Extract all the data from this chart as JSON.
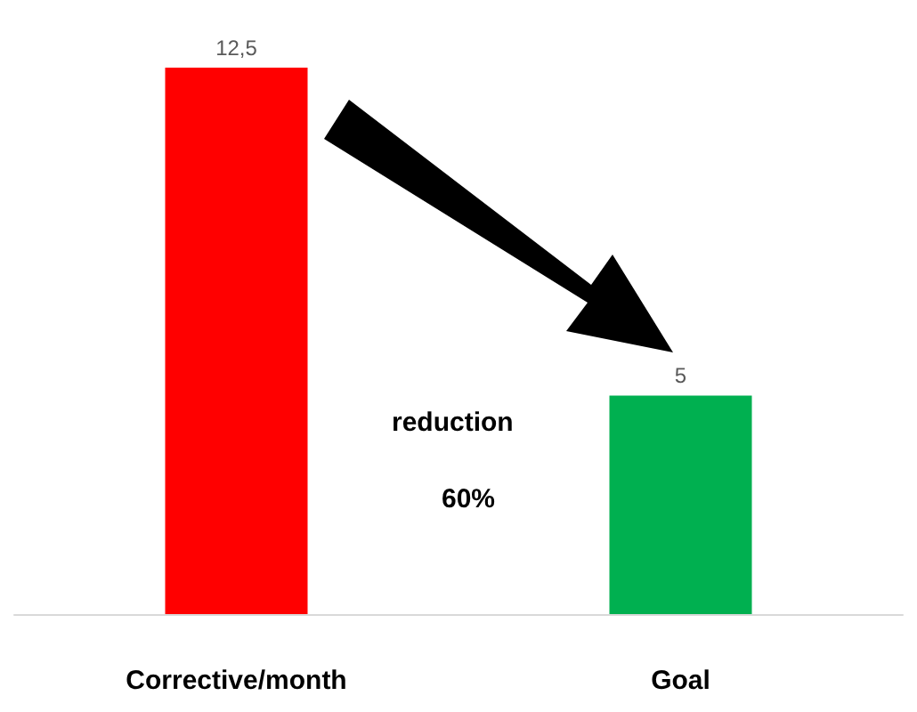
{
  "chart_data": {
    "type": "bar",
    "categories": [
      "Corrective/month",
      "Goal"
    ],
    "values": [
      12.5,
      5
    ],
    "colors": [
      "#ff0000",
      "#00b050"
    ],
    "value_labels": [
      "12,5",
      "5"
    ],
    "annotations": [
      "reduction",
      "60%"
    ]
  }
}
